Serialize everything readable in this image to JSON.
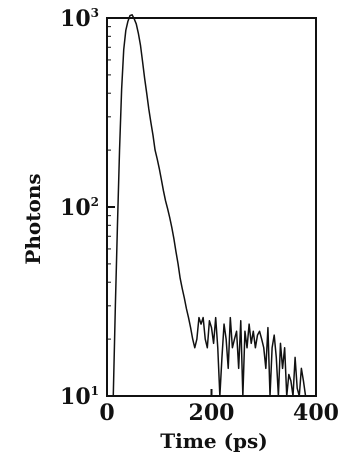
{
  "chart_data": {
    "type": "line",
    "title": "",
    "xlabel": "Time (ps)",
    "ylabel": "Photons",
    "xlim": [
      0,
      400
    ],
    "ylim": [
      10,
      1000
    ],
    "y_scale": "log",
    "grid": false,
    "x_ticks": [
      {
        "value": 0,
        "label": "0"
      },
      {
        "value": 200,
        "label": "200"
      },
      {
        "value": 400,
        "label": "400"
      }
    ],
    "y_ticks": [
      {
        "value": 10,
        "base": "10",
        "exp": "1"
      },
      {
        "value": 100,
        "base": "10",
        "exp": "2"
      },
      {
        "value": 1000,
        "base": "10",
        "exp": "3"
      }
    ],
    "series": [
      {
        "color": "#111111",
        "x": [
          12,
          16,
          20,
          24,
          28,
          32,
          36,
          40,
          44,
          48,
          52,
          56,
          60,
          64,
          68,
          72,
          76,
          80,
          84,
          88,
          92,
          96,
          100,
          104,
          108,
          112,
          116,
          120,
          124,
          128,
          132,
          136,
          140,
          144,
          148,
          152,
          156,
          160,
          164,
          168,
          172,
          176,
          180,
          184,
          188,
          192,
          196,
          200,
          204,
          208,
          212,
          216,
          220,
          224,
          228,
          232,
          236,
          240,
          244,
          248,
          252,
          256,
          260,
          264,
          268,
          272,
          276,
          280,
          284,
          288,
          292,
          296,
          300,
          304,
          308,
          312,
          316,
          320,
          324,
          328,
          332,
          336,
          340,
          344,
          348,
          352,
          356,
          360,
          364,
          368,
          372,
          376,
          380,
          384,
          388
        ],
        "y": [
          10,
          30,
          80,
          200,
          420,
          680,
          860,
          960,
          1030,
          1040,
          990,
          930,
          830,
          720,
          590,
          480,
          400,
          330,
          280,
          240,
          200,
          180,
          160,
          140,
          122,
          108,
          98,
          88,
          78,
          68,
          58,
          50,
          42,
          37,
          33,
          29,
          26,
          23,
          20,
          18,
          20,
          26,
          24,
          26,
          20,
          18,
          25,
          23,
          19,
          26,
          18,
          10,
          16,
          24,
          20,
          14,
          26,
          18,
          20,
          22,
          14,
          25,
          10,
          22,
          18,
          24,
          19,
          22,
          18,
          21,
          22,
          20,
          18,
          14,
          23,
          10,
          18,
          21,
          16,
          10,
          19,
          14,
          18,
          10,
          13,
          12,
          10,
          16,
          11,
          10,
          14,
          12,
          10,
          10,
          10
        ]
      }
    ]
  }
}
